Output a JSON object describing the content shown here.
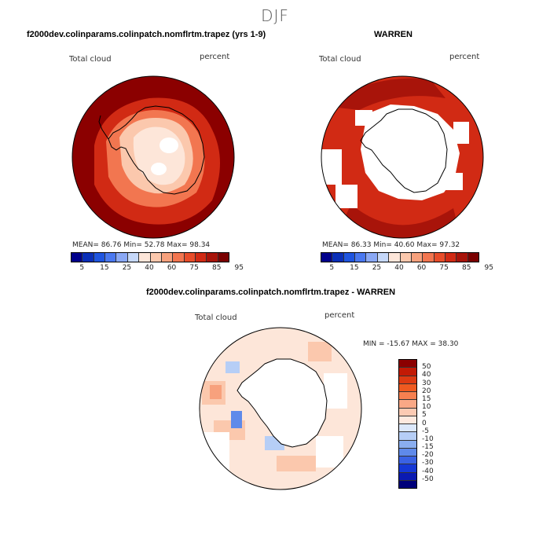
{
  "season": "DJF",
  "panels": {
    "p1": {
      "title": "f2000dev.colinparams.colinpatch.nomflrtm.trapez (yrs 1-9)",
      "var_label": "Total cloud",
      "units_label": "percent",
      "stats": "MEAN=  86.76  Min=  52.78  Max=  98.34"
    },
    "p2": {
      "title": "WARREN",
      "var_label": "Total cloud",
      "units_label": "percent",
      "stats": "MEAN=  86.33  Min=  40.60  Max=  97.32"
    },
    "p3": {
      "title": "f2000dev.colinparams.colinpatch.nomflrtm.trapez - WARREN",
      "var_label": "Total cloud",
      "units_label": "percent",
      "stats": "MIN = -15.67 MAX =  38.30"
    }
  },
  "colorbar_abs": {
    "colors": [
      "#00008b",
      "#0a2fb8",
      "#1f55e0",
      "#4a78f0",
      "#8aa8f5",
      "#c6d8f9",
      "#fde6d9",
      "#fbc8ad",
      "#f7a17d",
      "#f27650",
      "#e84d2a",
      "#d12a14",
      "#a8140a",
      "#7a0000"
    ],
    "tick_labels": [
      "5",
      "15",
      "25",
      "40",
      "60",
      "75",
      "85",
      "95"
    ]
  },
  "colorbar_diff": {
    "colors": [
      "#8b0000",
      "#c21a05",
      "#dd3a12",
      "#ef5a20",
      "#f68050",
      "#f9a886",
      "#fbcab3",
      "#fde9df",
      "#dce8fb",
      "#b6cef6",
      "#8aaef0",
      "#5f8aea",
      "#3a62e4",
      "#1538d6",
      "#0a1ab2",
      "#00007a"
    ],
    "tick_labels": [
      "50",
      "40",
      "30",
      "20",
      "15",
      "10",
      "5",
      "0",
      "-5",
      "-10",
      "-15",
      "-20",
      "-30",
      "-40",
      "-50"
    ]
  },
  "map_colors": {
    "p1": {
      "ocean": "#8b0000",
      "mid": "#d12a14",
      "light": "#f27650",
      "pale": "#fbc8ad",
      "land_inner": "#fde6d9"
    },
    "p2": {
      "ocean": "#d12a14",
      "dark": "#a8140a",
      "land": "#ffffff"
    },
    "p3": {
      "ocean": "#fde6d9",
      "warm": "#fbc8ad",
      "warm2": "#f7a17d",
      "cool": "#b6cef6",
      "cool2": "#5f8aea",
      "land": "#ffffff"
    }
  }
}
